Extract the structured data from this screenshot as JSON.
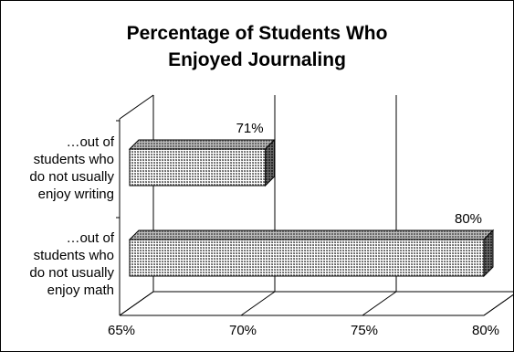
{
  "chart_data": {
    "type": "bar",
    "orientation": "horizontal",
    "style": "3d",
    "title_lines": [
      "Percentage of Students Who",
      "Enjoyed Journaling"
    ],
    "categories": [
      "…out of students who do not usually enjoy writing",
      "…out of students who do not usually enjoy math"
    ],
    "category_label_lines": [
      [
        "…out of",
        "students who",
        "do not usually",
        "enjoy writing"
      ],
      [
        "…out of",
        "students who",
        "do not usually",
        "enjoy math"
      ]
    ],
    "values": [
      71,
      80
    ],
    "data_labels": [
      "71%",
      "80%"
    ],
    "xlim": [
      65,
      80
    ],
    "x_ticks": [
      65,
      70,
      75,
      80
    ],
    "x_tick_labels": [
      "65%",
      "70%",
      "75%",
      "80%"
    ],
    "grid": "vertical gridlines",
    "legend": "none",
    "bar_fill": "crosshatch gray",
    "colors": {
      "bar": "#9a9a9a",
      "bar_side": "#3f3f3f",
      "bar_top": "#7a7a7a",
      "grid": "#000000"
    }
  }
}
